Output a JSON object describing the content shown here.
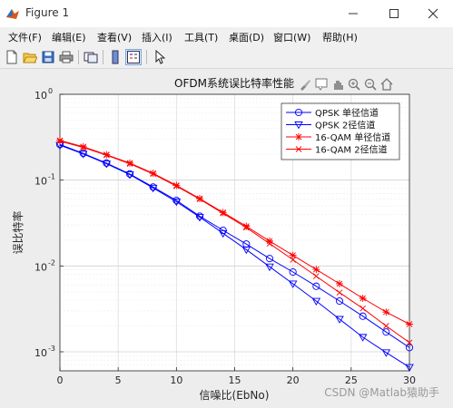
{
  "window": {
    "title": "Figure 1"
  },
  "menu": {
    "items": [
      "文件(F)",
      "编辑(E)",
      "查看(V)",
      "插入(I)",
      "工具(T)",
      "桌面(D)",
      "窗口(W)",
      "帮助(H)"
    ]
  },
  "toolbar": {
    "icons": [
      "new-figure-icon",
      "open-file-icon",
      "save-icon",
      "print-icon",
      "link-plot-icon",
      "colorbar-icon",
      "legend-icon",
      "pointer-icon"
    ]
  },
  "axes_toolbar": {
    "icons": [
      "brush-icon",
      "datatip-icon",
      "pan-icon",
      "zoom-in-icon",
      "zoom-out-icon",
      "home-icon"
    ]
  },
  "watermark": "CSDN @Matlab猿助手",
  "colors": {
    "blue": "#0000ff",
    "red": "#ff0000"
  },
  "chart_data": {
    "type": "line",
    "title": "OFDM系统误比特率性能",
    "xlabel": "信噪比(EbNo)",
    "ylabel": "误比特率",
    "xlim": [
      0,
      30
    ],
    "ylim": [
      0.0006,
      1
    ],
    "yscale": "log",
    "grid": true,
    "xticks": [
      "0",
      "5",
      "10",
      "15",
      "20",
      "25",
      "30"
    ],
    "yticks": [
      "10",
      "10",
      "10",
      "10"
    ],
    "ytick_exponents": [
      "0",
      "-1",
      "-2",
      "-3"
    ],
    "legend_position": "top-right",
    "series": [
      {
        "name": "QPSK 单径信道",
        "color": "#0000ff",
        "marker": "circle",
        "x": [
          0,
          2,
          4,
          6,
          8,
          10,
          12,
          14,
          16,
          18,
          20,
          22,
          24,
          26,
          28,
          30
        ],
        "y": [
          0.26,
          0.205,
          0.158,
          0.118,
          0.083,
          0.058,
          0.038,
          0.026,
          0.018,
          0.0122,
          0.0085,
          0.0058,
          0.0039,
          0.0026,
          0.0017,
          0.00112
        ]
      },
      {
        "name": "QPSK 2径信道",
        "color": "#0000ff",
        "marker": "triangle-down",
        "x": [
          0,
          2,
          4,
          6,
          8,
          10,
          12,
          14,
          16,
          18,
          20,
          22,
          24,
          26,
          28,
          30
        ],
        "y": [
          0.255,
          0.202,
          0.155,
          0.116,
          0.081,
          0.056,
          0.037,
          0.024,
          0.0155,
          0.0098,
          0.0062,
          0.0039,
          0.0024,
          0.00148,
          0.00098,
          0.00066
        ]
      },
      {
        "name": "16-QAM 单径信道",
        "color": "#ff0000",
        "marker": "asterisk",
        "x": [
          0,
          2,
          4,
          6,
          8,
          10,
          12,
          14,
          16,
          18,
          20,
          22,
          24,
          26,
          28,
          30
        ],
        "y": [
          0.29,
          0.245,
          0.198,
          0.158,
          0.12,
          0.087,
          0.061,
          0.042,
          0.029,
          0.0195,
          0.0133,
          0.0091,
          0.0062,
          0.0042,
          0.0029,
          0.0021
        ]
      },
      {
        "name": "16-QAM 2径信道",
        "color": "#ff0000",
        "marker": "x",
        "x": [
          0,
          2,
          4,
          6,
          8,
          10,
          12,
          14,
          16,
          18,
          20,
          22,
          24,
          26,
          28,
          30
        ],
        "y": [
          0.285,
          0.24,
          0.195,
          0.155,
          0.118,
          0.085,
          0.06,
          0.041,
          0.028,
          0.0182,
          0.0118,
          0.0076,
          0.0049,
          0.0032,
          0.002,
          0.00128
        ]
      }
    ]
  }
}
